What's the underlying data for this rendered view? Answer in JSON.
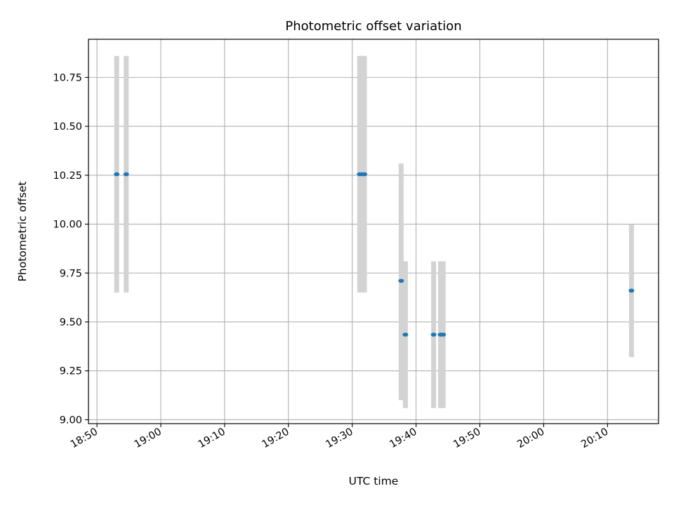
{
  "chart_data": {
    "type": "scatter",
    "title": "Photometric offset variation",
    "xlabel": "UTC time",
    "ylabel": "Photometric offset",
    "x_unit": "UTC time (HH:MM:SS)",
    "xlim": [
      "18:48:40",
      "20:18:00"
    ],
    "ylim": [
      8.98,
      10.945
    ],
    "x_ticks": [
      "18:50",
      "19:00",
      "19:10",
      "19:20",
      "19:30",
      "19:40",
      "19:50",
      "20:00",
      "20:10"
    ],
    "y_ticks": [
      "9.00",
      "9.25",
      "9.50",
      "9.75",
      "10.00",
      "10.25",
      "10.50",
      "10.75"
    ],
    "grid": true,
    "colors": {
      "points": "#1f77b4",
      "error_bars": "#d3d3d3",
      "grid": "#b0b0b0"
    },
    "points": [
      {
        "time": "18:53:05",
        "y": 10.255,
        "ylow": 9.65,
        "yhigh": 10.86
      },
      {
        "time": "18:54:35",
        "y": 10.255,
        "ylow": 9.65,
        "yhigh": 10.86
      },
      {
        "time": "19:31:10",
        "y": 10.255,
        "ylow": 9.65,
        "yhigh": 10.86
      },
      {
        "time": "19:31:35",
        "y": 10.255,
        "ylow": 9.65,
        "yhigh": 10.86
      },
      {
        "time": "19:31:55",
        "y": 10.255,
        "ylow": 9.65,
        "yhigh": 10.86
      },
      {
        "time": "19:37:40",
        "y": 9.71,
        "ylow": 9.1,
        "yhigh": 10.31
      },
      {
        "time": "19:38:20",
        "y": 9.435,
        "ylow": 9.06,
        "yhigh": 9.81
      },
      {
        "time": "19:42:45",
        "y": 9.435,
        "ylow": 9.06,
        "yhigh": 9.81
      },
      {
        "time": "19:43:50",
        "y": 9.435,
        "ylow": 9.06,
        "yhigh": 9.81
      },
      {
        "time": "19:44:15",
        "y": 9.435,
        "ylow": 9.06,
        "yhigh": 9.81
      },
      {
        "time": "20:13:45",
        "y": 9.66,
        "ylow": 9.32,
        "yhigh": 10.0
      }
    ]
  }
}
